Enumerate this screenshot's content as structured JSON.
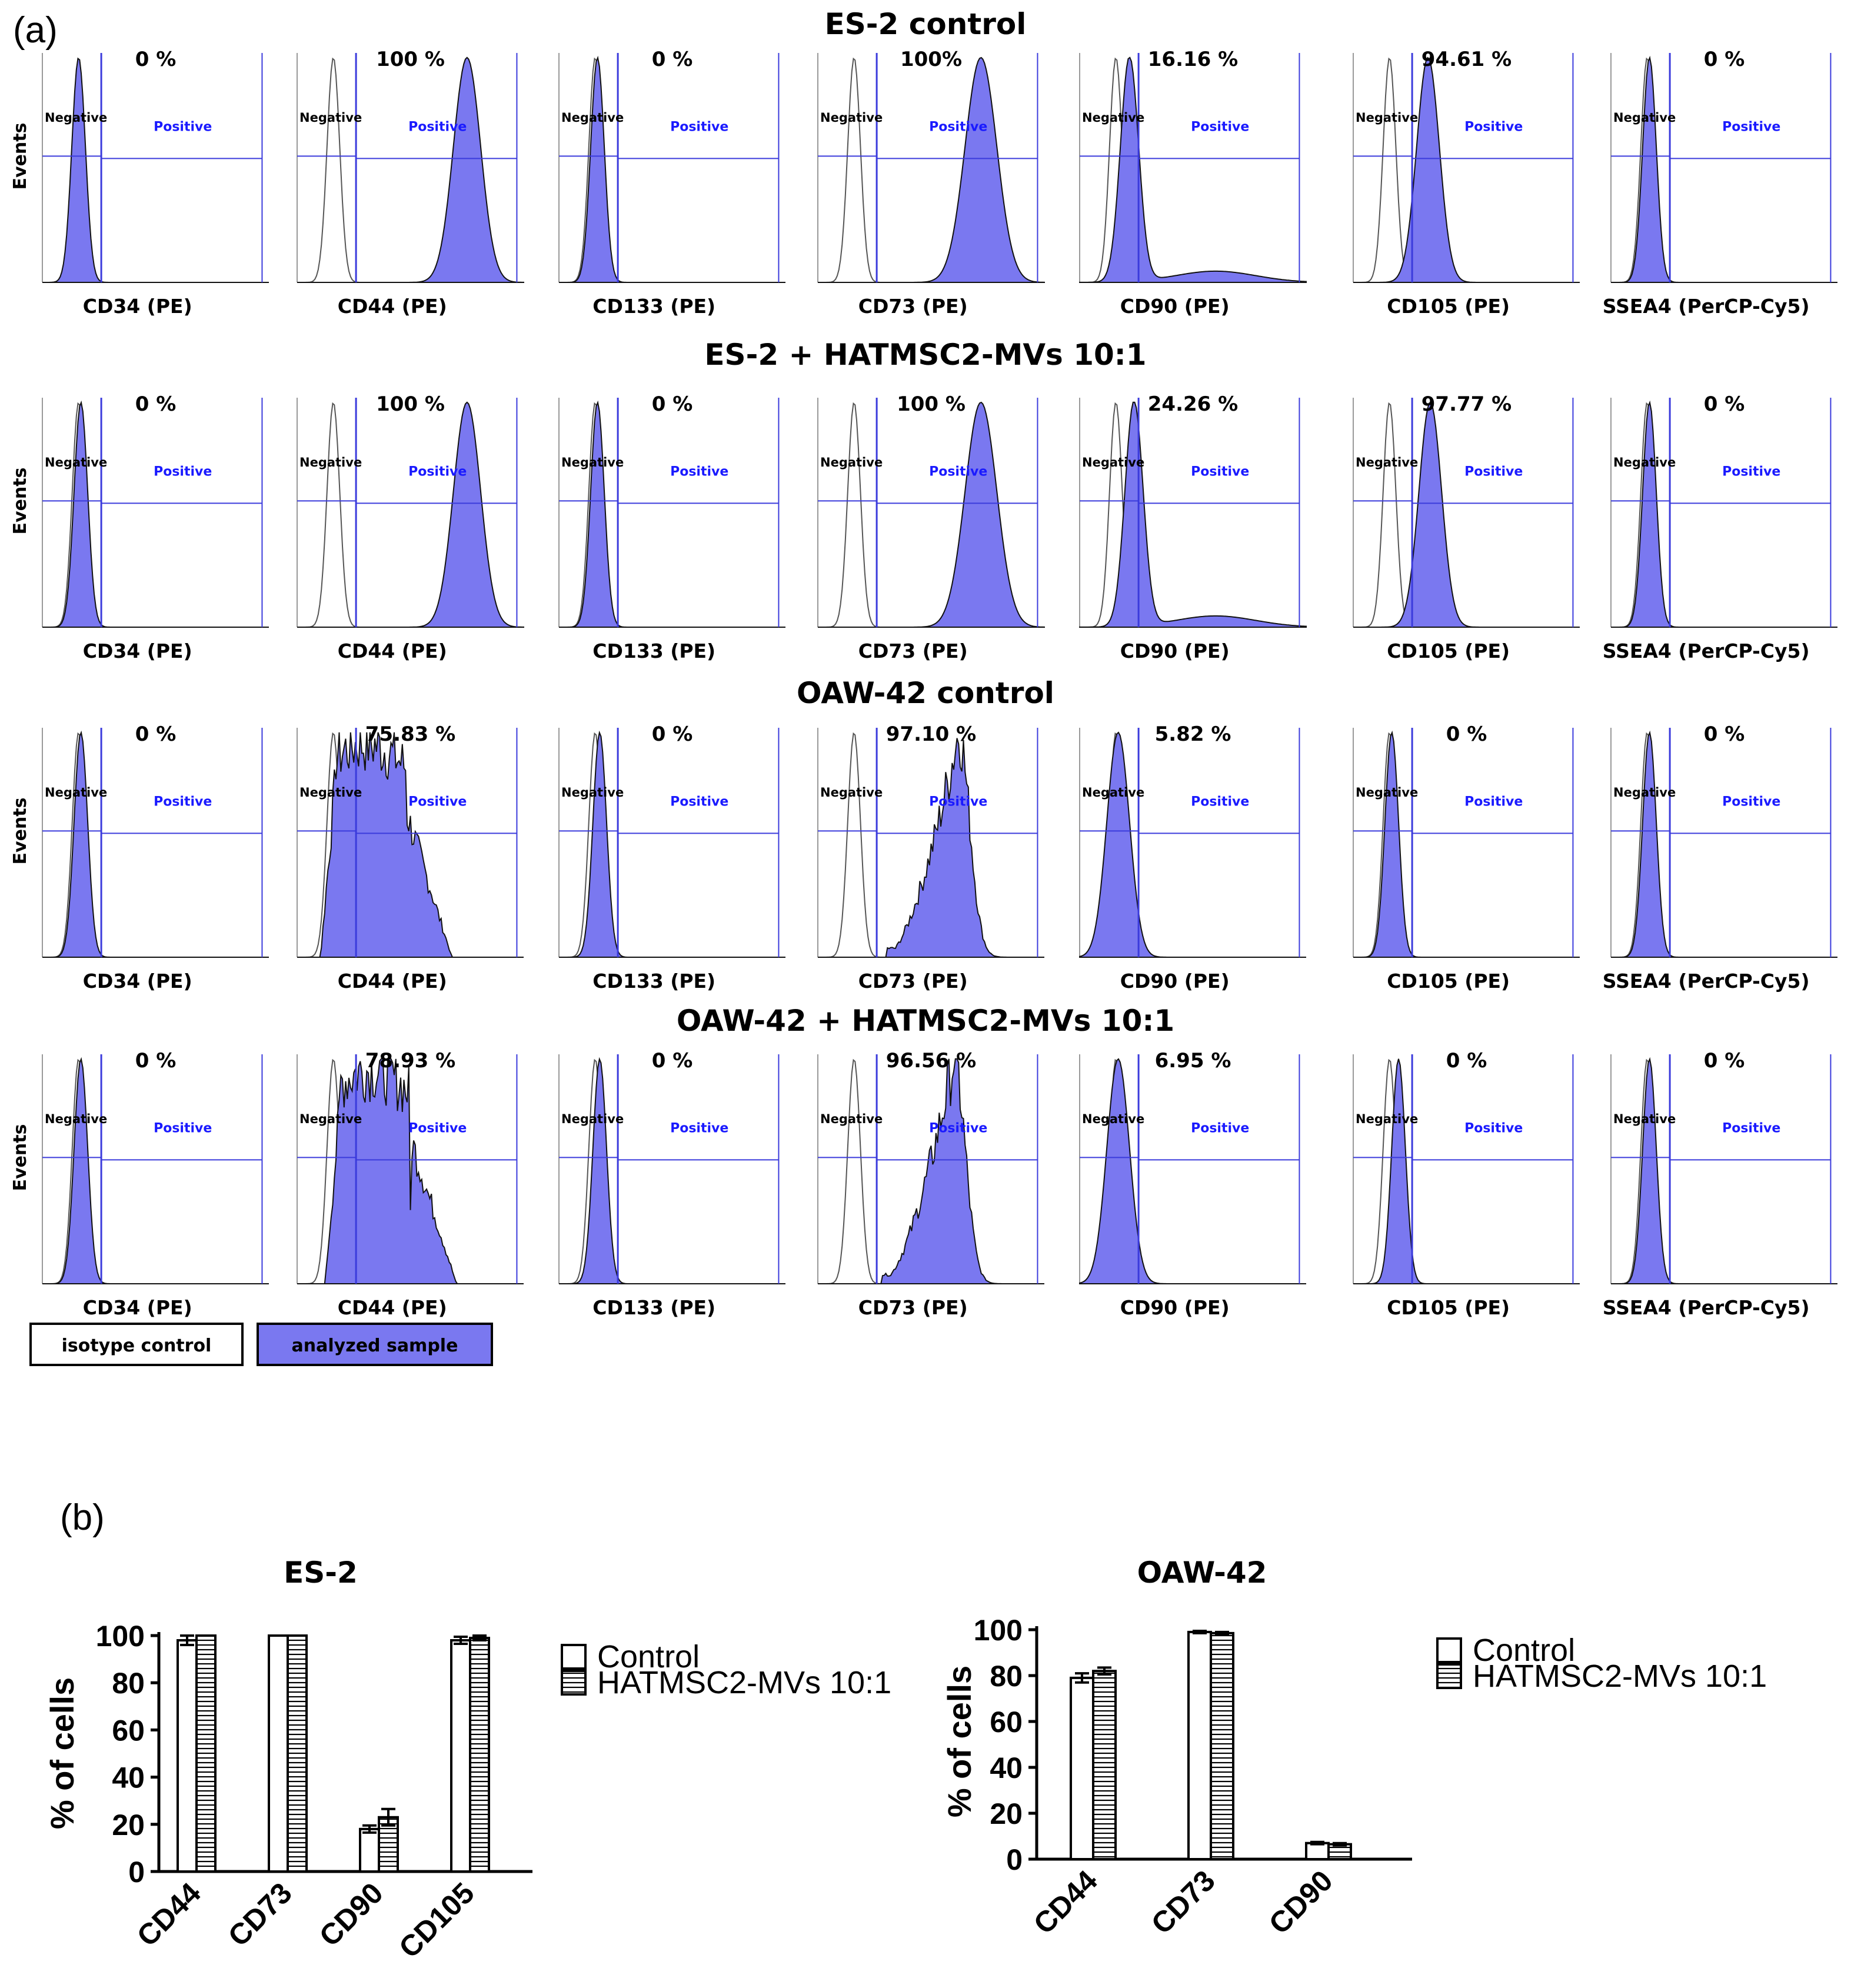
{
  "figure": {
    "panel_a_label": "(a)",
    "panel_b_label": "(b)",
    "y_axis_label": "Events",
    "gate_negative": "Negative",
    "gate_positive": "Positive",
    "legend": {
      "isotype": "isotype control",
      "sample": "analyzed sample"
    },
    "colors": {
      "fill": "#7a78f0",
      "gate": "#3b3bdc",
      "blue_text": "#1a1aff",
      "legend_fill": "#7a78f0"
    }
  },
  "chart_data": [
    {
      "type": "histogram-grid",
      "panel": "a",
      "rows": [
        {
          "title": "ES-2 control",
          "cells": [
            {
              "marker": "CD34 (PE)",
              "pct": "0 %",
              "shape": "neg",
              "cx": 0.16,
              "w": 0.03
            },
            {
              "marker": "CD44 (PE)",
              "pct": "100 %",
              "shape": "pos",
              "cx": 0.75,
              "w": 0.06
            },
            {
              "marker": "CD133 (PE)",
              "pct": "0 %",
              "shape": "neg",
              "cx": 0.17,
              "w": 0.03
            },
            {
              "marker": "CD73 (PE)",
              "pct": "100%",
              "shape": "pos",
              "cx": 0.72,
              "w": 0.07
            },
            {
              "marker": "CD90 (PE)",
              "pct": "16.16 %",
              "shape": "tail",
              "cx": 0.22,
              "w": 0.04
            },
            {
              "marker": "CD105 (PE)",
              "pct": "94.61 %",
              "shape": "pos",
              "cx": 0.33,
              "w": 0.05
            },
            {
              "marker": "SSEA4 (PerCP-Cy5)",
              "pct": "0 %",
              "shape": "neg",
              "cx": 0.17,
              "w": 0.03
            }
          ]
        },
        {
          "title": "ES-2 + HATMSC2-MVs 10:1",
          "cells": [
            {
              "marker": "CD34 (PE)",
              "pct": "0 %",
              "shape": "neg",
              "cx": 0.17,
              "w": 0.03
            },
            {
              "marker": "CD44 (PE)",
              "pct": "100 %",
              "shape": "pos",
              "cx": 0.75,
              "w": 0.06
            },
            {
              "marker": "CD133 (PE)",
              "pct": "0 %",
              "shape": "neg",
              "cx": 0.17,
              "w": 0.03
            },
            {
              "marker": "CD73 (PE)",
              "pct": "100 %",
              "shape": "pos",
              "cx": 0.72,
              "w": 0.07
            },
            {
              "marker": "CD90 (PE)",
              "pct": "24.26 %",
              "shape": "tail",
              "cx": 0.24,
              "w": 0.04
            },
            {
              "marker": "CD105 (PE)",
              "pct": "97.77 %",
              "shape": "pos",
              "cx": 0.34,
              "w": 0.05
            },
            {
              "marker": "SSEA4 (PerCP-Cy5)",
              "pct": "0 %",
              "shape": "neg",
              "cx": 0.17,
              "w": 0.03
            }
          ]
        },
        {
          "title": "OAW-42 control",
          "cells": [
            {
              "marker": "CD34 (PE)",
              "pct": "0 %",
              "shape": "neg",
              "cx": 0.17,
              "w": 0.03
            },
            {
              "marker": "CD44 (PE)",
              "pct": "75.83 %",
              "shape": "wide",
              "cx": 0.3,
              "w": 0.16
            },
            {
              "marker": "CD133 (PE)",
              "pct": "0 %",
              "shape": "neg",
              "cx": 0.18,
              "w": 0.03
            },
            {
              "marker": "CD73 (PE)",
              "pct": "97.10 %",
              "shape": "left",
              "cx": 0.62,
              "w": 0.12
            },
            {
              "marker": "CD90 (PE)",
              "pct": "5.82 %",
              "shape": "mid",
              "cx": 0.17,
              "w": 0.05
            },
            {
              "marker": "CD105 (PE)",
              "pct": "0 %",
              "shape": "neg",
              "cx": 0.17,
              "w": 0.03
            },
            {
              "marker": "SSEA4 (PerCP-Cy5)",
              "pct": "0 %",
              "shape": "neg",
              "cx": 0.17,
              "w": 0.03
            }
          ]
        },
        {
          "title": "OAW-42 + HATMSC2-MVs 10:1",
          "cells": [
            {
              "marker": "CD34 (PE)",
              "pct": "0 %",
              "shape": "neg",
              "cx": 0.17,
              "w": 0.03
            },
            {
              "marker": "CD44 (PE)",
              "pct": "78.93 %",
              "shape": "wide",
              "cx": 0.32,
              "w": 0.16
            },
            {
              "marker": "CD133 (PE)",
              "pct": "0 %",
              "shape": "neg",
              "cx": 0.18,
              "w": 0.03
            },
            {
              "marker": "CD73 (PE)",
              "pct": "96.56 %",
              "shape": "left",
              "cx": 0.6,
              "w": 0.12
            },
            {
              "marker": "CD90 (PE)",
              "pct": "6.95 %",
              "shape": "mid",
              "cx": 0.17,
              "w": 0.05
            },
            {
              "marker": "CD105 (PE)",
              "pct": "0 %",
              "shape": "neg",
              "cx": 0.2,
              "w": 0.03
            },
            {
              "marker": "SSEA4 (PerCP-Cy5)",
              "pct": "0 %",
              "shape": "neg",
              "cx": 0.17,
              "w": 0.03
            }
          ]
        }
      ]
    },
    {
      "type": "bar",
      "panel": "b",
      "title": "ES-2",
      "ylabel": "% of cells",
      "ylim": [
        0,
        100
      ],
      "yticks": [
        0,
        20,
        40,
        60,
        80,
        100
      ],
      "categories": [
        "CD44",
        "CD73",
        "CD90",
        "CD105"
      ],
      "series": [
        {
          "name": "Control",
          "values": [
            98,
            100,
            18,
            98
          ],
          "errors": [
            2,
            0,
            1.5,
            1.5
          ]
        },
        {
          "name": "HATMSC2-MVs 10:1",
          "values": [
            100,
            100,
            23,
            99
          ],
          "errors": [
            0,
            0,
            3.5,
            1
          ]
        }
      ]
    },
    {
      "type": "bar",
      "panel": "b",
      "title": "OAW-42",
      "ylabel": "% of cells",
      "ylim": [
        0,
        100
      ],
      "yticks": [
        0,
        20,
        40,
        60,
        80,
        100
      ],
      "categories": [
        "CD44",
        "CD73",
        "CD90"
      ],
      "series": [
        {
          "name": "Control",
          "values": [
            79,
            99,
            7
          ],
          "errors": [
            2,
            0.5,
            0.5
          ]
        },
        {
          "name": "HATMSC2-MVs 10:1",
          "values": [
            82,
            98.5,
            6.5
          ],
          "errors": [
            1.5,
            0.5,
            0.5
          ]
        }
      ]
    }
  ]
}
